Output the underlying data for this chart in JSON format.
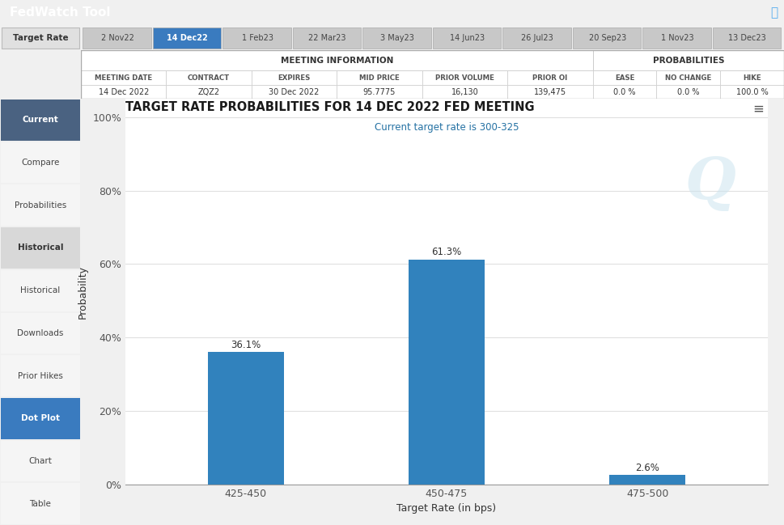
{
  "title": "TARGET RATE PROBABILITIES FOR 14 DEC 2022 FED MEETING",
  "subtitle": "Current target rate is 300-325",
  "xlabel": "Target Rate (in bps)",
  "ylabel": "Probability",
  "categories": [
    "425-450",
    "450-475",
    "475-500"
  ],
  "values": [
    36.1,
    61.3,
    2.6
  ],
  "bar_color": "#3182bd",
  "yticks": [
    0,
    20,
    40,
    60,
    80,
    100
  ],
  "ytick_labels": [
    "0%",
    "20%",
    "40%",
    "60%",
    "80%",
    "100%"
  ],
  "ylim": [
    0,
    105
  ],
  "grid_color": "#e0e0e0",
  "header_text": "FedWatch Tool",
  "header_bg": "#4a6581",
  "tab_active": "14 Dec22",
  "tabs": [
    "2 Nov22",
    "14 Dec22",
    "1 Feb23",
    "22 Mar23",
    "3 May23",
    "14 Jun23",
    "26 Jul23",
    "20 Sep23",
    "1 Nov23",
    "13 Dec23"
  ],
  "tab_active_color": "#3a7bbf",
  "tab_inactive_color": "#c8c8c8",
  "meeting_date": "14 Dec 2022",
  "contract": "ZQZ2",
  "expires": "30 Dec 2022",
  "mid_price": "95.7775",
  "prior_volume": "16,130",
  "prior_oi": "139,475",
  "ease": "0.0 %",
  "no_change": "0.0 %",
  "hike": "100.0 %",
  "sidebar_items": [
    {
      "label": "Current",
      "style": "active_blue"
    },
    {
      "label": "Compare",
      "style": "normal"
    },
    {
      "label": "Probabilities",
      "style": "normal"
    },
    {
      "label": "Historical",
      "style": "section_gray"
    },
    {
      "label": "Historical",
      "style": "normal"
    },
    {
      "label": "Downloads",
      "style": "normal"
    },
    {
      "label": "Prior Hikes",
      "style": "normal"
    },
    {
      "label": "Dot Plot",
      "style": "btn_blue"
    },
    {
      "label": "Chart",
      "style": "normal"
    },
    {
      "label": "Table",
      "style": "normal"
    }
  ],
  "fig_width": 9.69,
  "fig_height": 6.49,
  "dpi": 100
}
